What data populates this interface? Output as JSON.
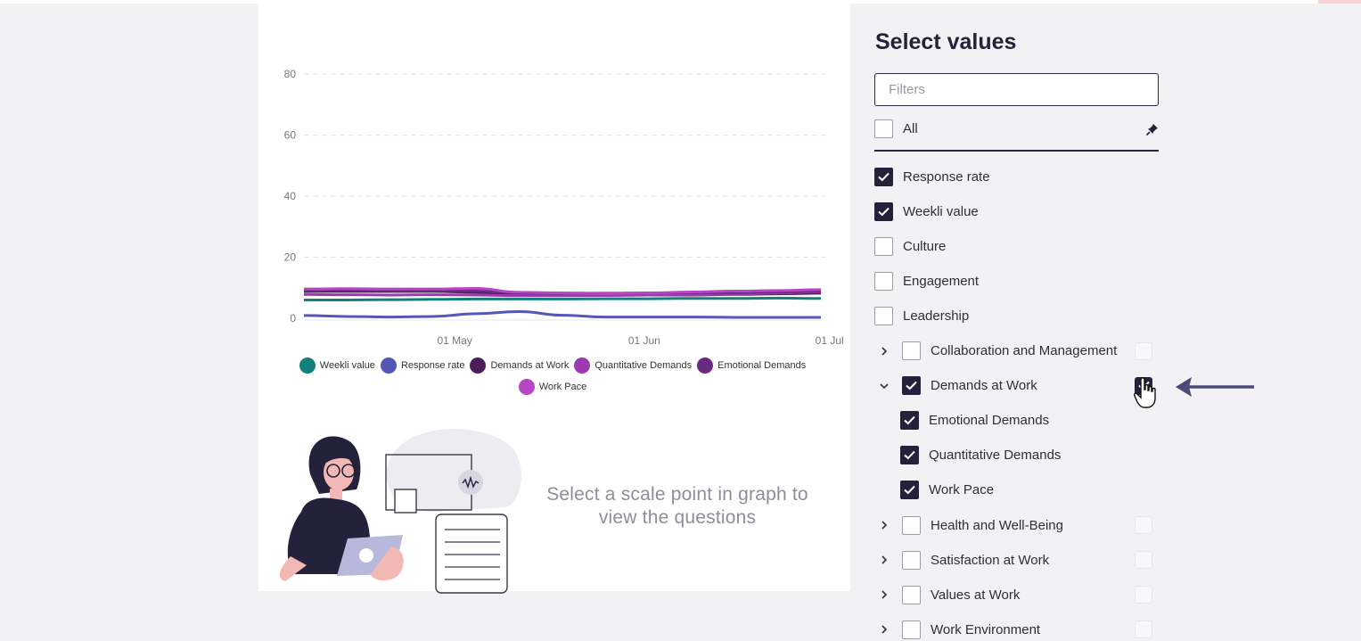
{
  "chart_data": {
    "type": "line",
    "x": [
      "04-08",
      "04-15",
      "04-22",
      "04-29",
      "05-06",
      "05-13",
      "05-20",
      "05-27",
      "06-03",
      "06-10",
      "06-17",
      "06-24",
      "07-01"
    ],
    "xticks": [
      "01 May",
      "01 Jun",
      "01 Jul"
    ],
    "yticks": [
      "0",
      "20",
      "40",
      "60",
      "80"
    ],
    "ylim": [
      0,
      85
    ],
    "grid": "dashed horizontal",
    "legend_position": "bottom",
    "series": [
      {
        "name": "Weekli value",
        "color": "#12807a",
        "values": [
          6.0,
          6.0,
          6.1,
          6.2,
          6.3,
          6.3,
          6.3,
          6.4,
          6.4,
          6.5,
          6.5,
          6.6,
          6.5
        ]
      },
      {
        "name": "Response rate",
        "color": "#5456b8",
        "values": [
          0.9,
          0.6,
          0.4,
          0.6,
          1.5,
          2.2,
          1.0,
          0.4,
          0.4,
          0.4,
          0.3,
          0.3,
          0.3
        ]
      },
      {
        "name": "Demands at Work",
        "color": "#4e1d5c",
        "values": [
          8.8,
          8.8,
          8.8,
          8.8,
          8.5,
          7.6,
          7.5,
          7.5,
          7.6,
          7.6,
          7.8,
          8.0,
          8.2
        ]
      },
      {
        "name": "Quantitative Demands",
        "color": "#9c3ab0",
        "values": [
          7.8,
          7.7,
          7.6,
          7.7,
          7.6,
          7.4,
          7.4,
          7.5,
          7.6,
          7.7,
          7.9,
          8.3,
          8.7
        ]
      },
      {
        "name": "Emotional Demands",
        "color": "#6a2a80",
        "values": [
          9.2,
          9.2,
          9.1,
          9.1,
          8.9,
          8.3,
          8.2,
          8.2,
          8.3,
          8.4,
          8.4,
          8.6,
          8.9
        ]
      },
      {
        "name": "Work Pace",
        "color": "#b746c4",
        "values": [
          9.6,
          9.7,
          9.6,
          9.6,
          9.8,
          8.5,
          8.3,
          8.1,
          8.3,
          8.6,
          8.9,
          9.1,
          9.4
        ]
      }
    ]
  },
  "illustration": {
    "hint_line1": "Select a scale point in graph to",
    "hint_line2": "view the questions"
  },
  "filter_panel": {
    "title": "Select values",
    "filter_placeholder": "Filters",
    "all_label": "All",
    "all_checked": false,
    "items": [
      {
        "label": "Response rate",
        "checked": true,
        "level": 0
      },
      {
        "label": "Weekli value",
        "checked": true,
        "level": 0
      },
      {
        "label": "Culture",
        "checked": false,
        "level": 0
      },
      {
        "label": "Engagement",
        "checked": false,
        "level": 0
      },
      {
        "label": "Leadership",
        "checked": false,
        "level": 0
      },
      {
        "label": "Collaboration and Management",
        "checked": false,
        "level": 1,
        "expander": "collapsed",
        "right_checkbox": false
      },
      {
        "label": "Demands at Work",
        "checked": true,
        "level": 1,
        "expander": "expanded",
        "right_checkbox": true
      },
      {
        "label": "Emotional Demands",
        "checked": true,
        "level": 2
      },
      {
        "label": "Quantitative Demands",
        "checked": true,
        "level": 2
      },
      {
        "label": "Work Pace",
        "checked": true,
        "level": 2
      },
      {
        "label": "Health and Well-Being",
        "checked": false,
        "level": 1,
        "expander": "collapsed",
        "right_checkbox": false
      },
      {
        "label": "Satisfaction at Work",
        "checked": false,
        "level": 1,
        "expander": "collapsed",
        "right_checkbox": false
      },
      {
        "label": "Values at Work",
        "checked": false,
        "level": 1,
        "expander": "collapsed",
        "right_checkbox": false
      },
      {
        "label": "Work Environment",
        "checked": false,
        "level": 1,
        "expander": "collapsed",
        "right_checkbox": false
      }
    ]
  },
  "icons": {
    "pin": "pin-icon",
    "cursor": "hand-cursor-icon",
    "arrow": "arrow-left-icon"
  },
  "colors": {
    "accent_dark": "#24223a",
    "annotation_arrow": "#4b4a78"
  }
}
